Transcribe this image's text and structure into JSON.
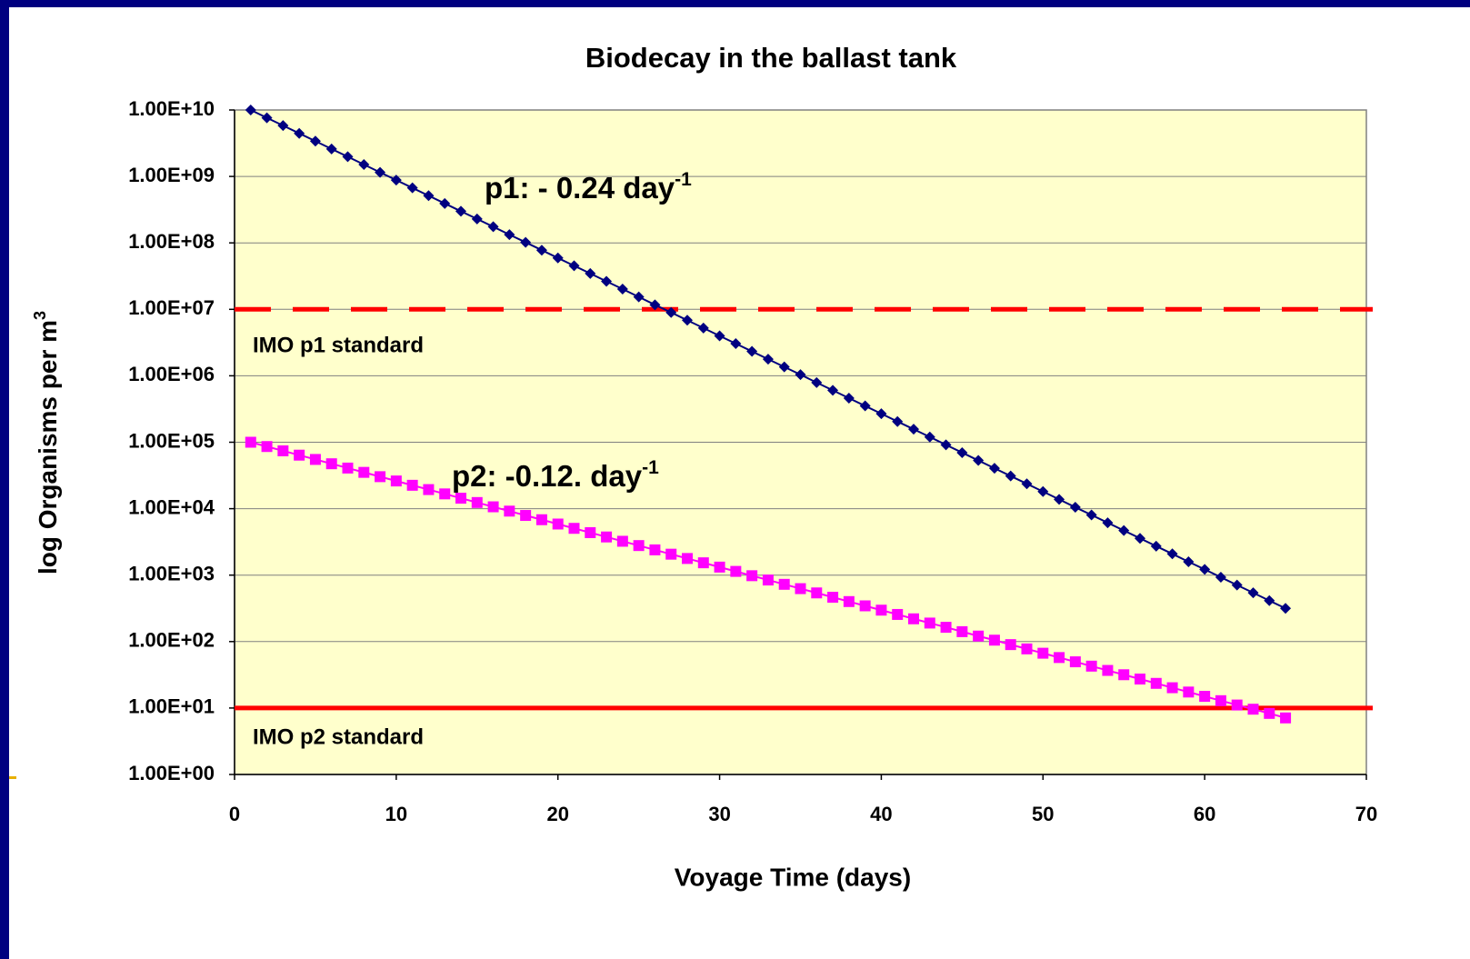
{
  "chart_data": {
    "type": "line",
    "title": "Biodecay in the ballast tank",
    "x_label": "Voyage Time (days)",
    "y_label": {
      "text": "log Organisms per m",
      "superscript": "3"
    },
    "log_scale_y": true,
    "grid": true,
    "plot_background": "#ffffcc",
    "x": [
      1,
      2,
      3,
      4,
      5,
      6,
      7,
      8,
      9,
      10,
      11,
      12,
      13,
      14,
      15,
      16,
      17,
      18,
      19,
      20,
      21,
      22,
      23,
      24,
      25,
      26,
      27,
      28,
      29,
      30,
      31,
      32,
      33,
      34,
      35,
      36,
      37,
      38,
      39,
      40,
      41,
      42,
      43,
      44,
      45,
      46,
      47,
      48,
      49,
      50,
      51,
      52,
      53,
      54,
      55,
      56,
      57,
      58,
      59,
      60,
      61,
      62,
      63,
      64,
      65
    ],
    "series": [
      {
        "color": "#000080",
        "marker": "diamond",
        "values": [
          10000000000,
          7630000000,
          5830000000,
          4450000000,
          3400000000,
          2590000000,
          1980000000,
          1510000000,
          1150000000,
          881000000,
          673000000,
          514000000,
          392000000,
          299000000,
          229000000,
          175000000,
          133000000,
          102000000,
          77700000,
          59300000,
          45300000,
          34600000,
          26400000,
          20200000,
          15400000,
          11700000,
          8970000,
          6850000,
          5230000,
          3990000,
          3050000,
          2330000,
          1780000,
          1360000,
          1040000,
          791000,
          604000,
          461000,
          352000,
          269000,
          205000,
          157000,
          120000,
          91300,
          69700,
          53200,
          40600,
          31000,
          23700,
          18100,
          13800,
          10500,
          8050,
          6140,
          4690,
          3580,
          2730,
          2090,
          1590,
          1220,
          929,
          709,
          542,
          413,
          316
        ]
      },
      {
        "color": "#ff00ff",
        "marker": "square",
        "values": [
          100000,
          86130,
          74200,
          63920,
          55070,
          47430,
          40860,
          35200,
          30320,
          26120,
          22500,
          19380,
          16690,
          14380,
          12380,
          10670,
          9190,
          7915,
          6820,
          5873,
          5058,
          4358,
          3753,
          3233,
          2785,
          2399,
          2066,
          1780,
          1533,
          1321,
          1138,
          980,
          844,
          727,
          626,
          540,
          465,
          400,
          345,
          297,
          256,
          220,
          190,
          164,
          141,
          121,
          105,
          90.0,
          77.6,
          66.8,
          57.5,
          49.6,
          42.7,
          36.8,
          31.7,
          27.3,
          23.5,
          20.2,
          17.4,
          15.0,
          12.9,
          11.1,
          9.6,
          8.3,
          7.1
        ]
      }
    ],
    "reference_lines": [
      {
        "label": "IMO p1 standard",
        "value": 10000000,
        "color": "#ff0000",
        "style": "dashed"
      },
      {
        "label": "IMO p2 standard",
        "value": 10,
        "color": "#ff0000",
        "style": "solid"
      }
    ],
    "annotations": [
      {
        "text": "p1: - 0.24  day",
        "superscript": "-1"
      },
      {
        "text": "p2: -0.12. day",
        "superscript": "-1"
      }
    ],
    "xlim": [
      0,
      70
    ],
    "xticks": [
      0,
      10,
      20,
      30,
      40,
      50,
      60,
      70
    ],
    "ylim": [
      1,
      10000000000
    ],
    "yticks": [
      {
        "value": 1,
        "label": "1.00E+00"
      },
      {
        "value": 10,
        "label": "1.00E+01"
      },
      {
        "value": 100,
        "label": "1.00E+02"
      },
      {
        "value": 1000,
        "label": "1.00E+03"
      },
      {
        "value": 10000,
        "label": "1.00E+04"
      },
      {
        "value": 100000,
        "label": "1.00E+05"
      },
      {
        "value": 1000000,
        "label": "1.00E+06"
      },
      {
        "value": 10000000,
        "label": "1.00E+07"
      },
      {
        "value": 100000000,
        "label": "1.00E+08"
      },
      {
        "value": 1000000000,
        "label": "1.00E+09"
      },
      {
        "value": 10000000000,
        "label": "1.00E+10"
      }
    ]
  }
}
